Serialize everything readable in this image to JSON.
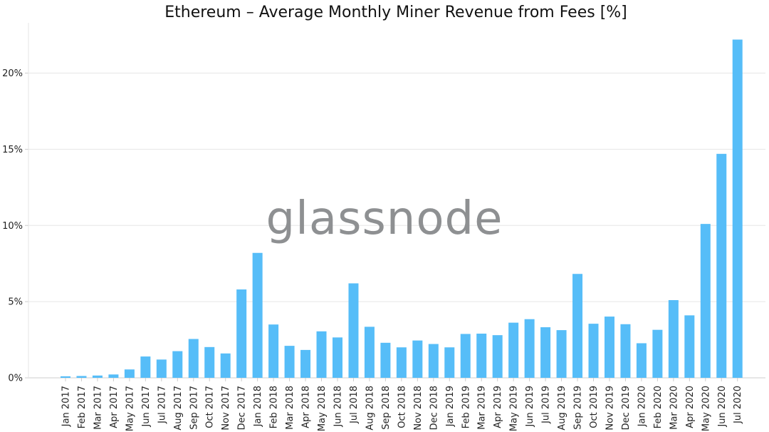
{
  "brand": {
    "watermark": "glassnode",
    "watermark_color": "#8e9092"
  },
  "colors": {
    "bar": "#56bdf8",
    "grid": "#e6e6e6",
    "axis": "#cccccc"
  },
  "chart_data": {
    "type": "bar",
    "title": "Ethereum – Average Monthly Miner Revenue from Fees [%]",
    "xlabel": "",
    "ylabel": "",
    "ylim": [
      0,
      23.3
    ],
    "yticks": [
      0,
      5,
      10,
      15,
      20
    ],
    "ytick_labels": [
      "0%",
      "5%",
      "10%",
      "15%",
      "20%"
    ],
    "grid": "horizontal",
    "categories": [
      "Jan 2017",
      "Feb 2017",
      "Mar 2017",
      "Apr 2017",
      "May 2017",
      "Jun 2017",
      "Jul 2017",
      "Aug 2017",
      "Sep 2017",
      "Oct 2017",
      "Nov 2017",
      "Dec 2017",
      "Jan 2018",
      "Feb 2018",
      "Mar 2018",
      "Apr 2018",
      "May 2018",
      "Jun 2018",
      "Jul 2018",
      "Aug 2018",
      "Sep 2018",
      "Oct 2018",
      "Nov 2018",
      "Dec 2018",
      "Jan 2019",
      "Feb 2019",
      "Mar 2019",
      "Apr 2019",
      "May 2019",
      "Jun 2019",
      "Jul 2019",
      "Aug 2019",
      "Sep 2019",
      "Oct 2019",
      "Nov 2019",
      "Dec 2019",
      "Jan 2020",
      "Feb 2020",
      "Mar 2020",
      "Apr 2020",
      "May 2020",
      "Jun 2020",
      "Jul 2020"
    ],
    "values": [
      0.1,
      0.12,
      0.15,
      0.22,
      0.55,
      1.4,
      1.2,
      1.75,
      2.55,
      2.02,
      1.6,
      5.8,
      8.2,
      3.5,
      2.1,
      1.83,
      3.05,
      2.65,
      6.2,
      3.35,
      2.3,
      2.0,
      2.45,
      2.22,
      2.0,
      2.88,
      2.9,
      2.8,
      3.62,
      3.85,
      3.32,
      3.13,
      6.82,
      3.55,
      4.02,
      3.52,
      2.27,
      3.15,
      5.1,
      4.1,
      10.1,
      14.7,
      22.2
    ]
  }
}
